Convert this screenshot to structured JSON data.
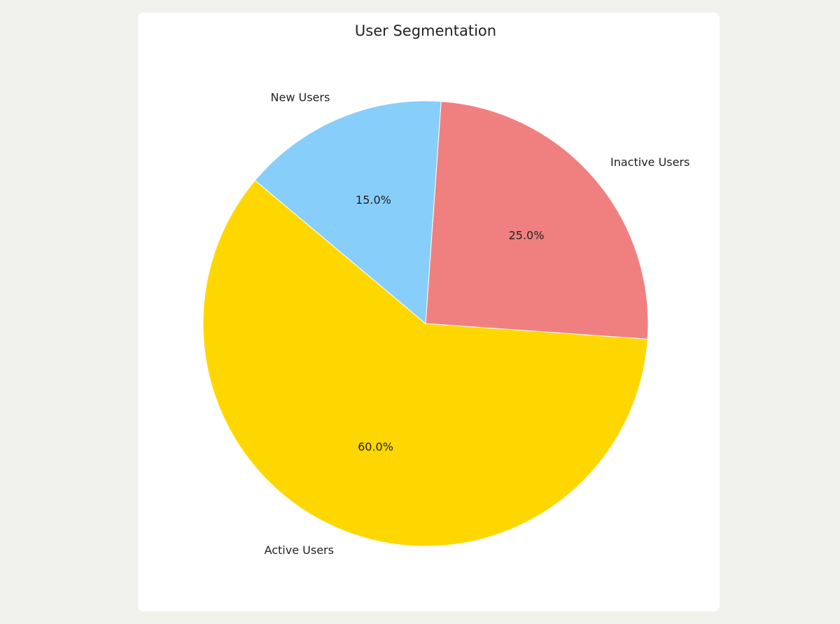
{
  "chart_data": {
    "type": "pie",
    "title": "User Segmentation",
    "categories": [
      "Active Users",
      "Inactive Users",
      "New Users"
    ],
    "values": [
      60,
      25,
      15
    ],
    "value_labels": [
      "60.0%",
      "25.0%",
      "15.0%"
    ],
    "colors": [
      "#ffd700",
      "#f08080",
      "#87cefa"
    ]
  }
}
